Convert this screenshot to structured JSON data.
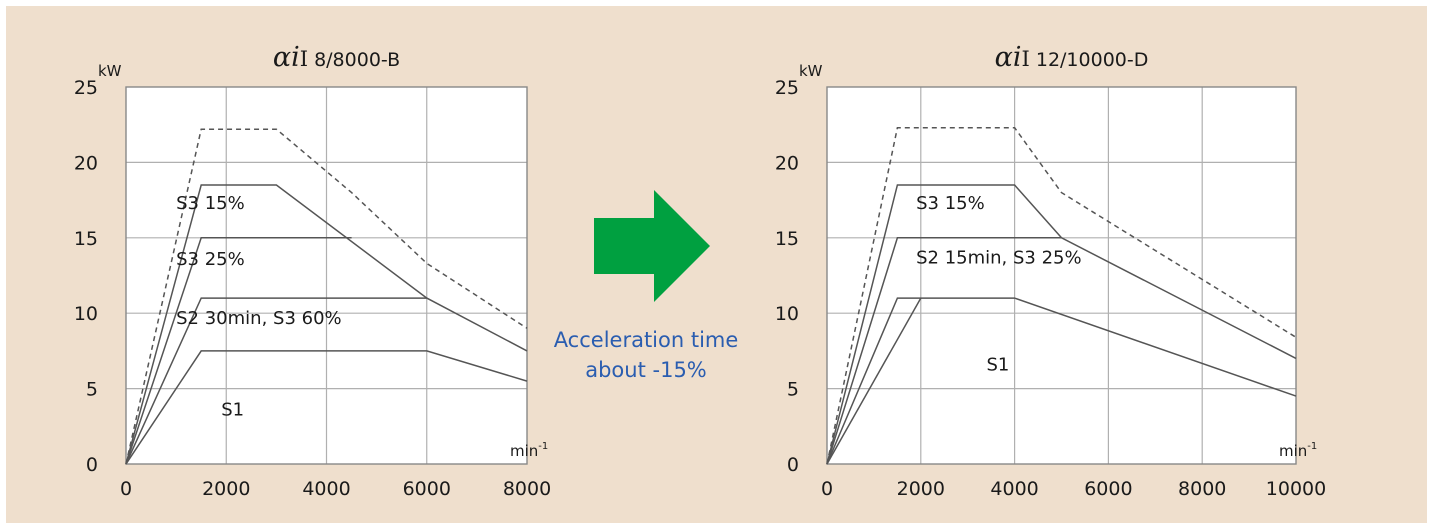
{
  "colors": {
    "background": "#efdfcd",
    "plot_area": "#ffffff",
    "grid": "#b0b0b0",
    "frame": "#888888",
    "curve": "#555555",
    "text": "#1a1a1a",
    "arrow": "#00a040",
    "middle_text": "#2a5db0"
  },
  "middle": {
    "arrow_icon": "right-arrow-icon",
    "line1": "Acceleration time",
    "line2": "about -15%"
  },
  "chart_data": [
    {
      "type": "line",
      "title_greek": "αi",
      "title_roman": "I",
      "title_model": " 8/8000-B",
      "y_unit": "kW",
      "x_unit_base": "min",
      "x_unit_exp": "-1",
      "xlim": [
        0,
        8000
      ],
      "ylim": [
        0,
        25
      ],
      "x_ticks": [
        0,
        2000,
        4000,
        6000,
        8000
      ],
      "x_tick_labels": [
        "0",
        "2000",
        "4000",
        "6000",
        "8000"
      ],
      "y_ticks": [
        0,
        5,
        10,
        15,
        20,
        25
      ],
      "y_tick_labels": [
        "0",
        "5",
        "10",
        "15",
        "20",
        "25"
      ],
      "grid": true,
      "series": [
        {
          "points": [
            [
              0,
              0
            ],
            [
              1500,
              22.2
            ],
            [
              3000,
              22.2
            ],
            [
              4500,
              18
            ],
            [
              6000,
              13.3
            ],
            [
              8000,
              9
            ]
          ],
          "dashed": true
        },
        {
          "points": [
            [
              0,
              0
            ],
            [
              1500,
              18.5
            ],
            [
              3000,
              18.5
            ],
            [
              6000,
              11
            ],
            [
              8000,
              7.5
            ]
          ],
          "dashed": false
        },
        {
          "points": [
            [
              0,
              0
            ],
            [
              1500,
              15
            ],
            [
              4500,
              15
            ]
          ],
          "dashed": false
        },
        {
          "points": [
            [
              0,
              0
            ],
            [
              1500,
              11
            ],
            [
              6000,
              11
            ]
          ],
          "dashed": false
        },
        {
          "points": [
            [
              0,
              0
            ],
            [
              1500,
              7.5
            ],
            [
              6000,
              7.5
            ],
            [
              8000,
              5.5
            ]
          ],
          "dashed": false
        }
      ],
      "annotations": [
        {
          "text": "S3 15%",
          "x": 1000,
          "y": 16.9
        },
        {
          "text": "S3 25%",
          "x": 1000,
          "y": 13.2
        },
        {
          "text": "S2 30min, S3 60%",
          "x": 1000,
          "y": 9.3
        },
        {
          "text": "S1",
          "x": 1900,
          "y": 3.2
        }
      ]
    },
    {
      "type": "line",
      "title_greek": "αi",
      "title_roman": "I",
      "title_model": " 12/10000-D",
      "y_unit": "kW",
      "x_unit_base": "min",
      "x_unit_exp": "-1",
      "xlim": [
        0,
        10000
      ],
      "ylim": [
        0,
        25
      ],
      "x_ticks": [
        0,
        2000,
        4000,
        6000,
        8000,
        10000
      ],
      "x_tick_labels": [
        "0",
        "2000",
        "4000",
        "6000",
        "8000",
        "10000"
      ],
      "y_ticks": [
        0,
        5,
        10,
        15,
        20,
        25
      ],
      "y_tick_labels": [
        "0",
        "5",
        "10",
        "15",
        "20",
        "25"
      ],
      "grid": true,
      "series": [
        {
          "points": [
            [
              0,
              0
            ],
            [
              1500,
              22.3
            ],
            [
              4000,
              22.3
            ],
            [
              5000,
              18
            ],
            [
              10000,
              8.4
            ]
          ],
          "dashed": true
        },
        {
          "points": [
            [
              0,
              0
            ],
            [
              1500,
              18.5
            ],
            [
              4000,
              18.5
            ],
            [
              5000,
              15
            ],
            [
              10000,
              7
            ]
          ],
          "dashed": false
        },
        {
          "points": [
            [
              0,
              0
            ],
            [
              1500,
              15
            ],
            [
              5000,
              15
            ]
          ],
          "dashed": false
        },
        {
          "points": [
            [
              0,
              0
            ],
            [
              1500,
              11
            ],
            [
              4000,
              11
            ],
            [
              10000,
              4.5
            ]
          ],
          "dashed": false
        },
        {
          "points": [
            [
              0,
              0
            ],
            [
              2000,
              11
            ]
          ],
          "dashed": false
        }
      ],
      "annotations": [
        {
          "text": "S3 15%",
          "x": 1900,
          "y": 16.9
        },
        {
          "text": "S2 15min, S3 25%",
          "x": 1900,
          "y": 13.3
        },
        {
          "text": "S1",
          "x": 3400,
          "y": 6.2
        }
      ]
    }
  ]
}
